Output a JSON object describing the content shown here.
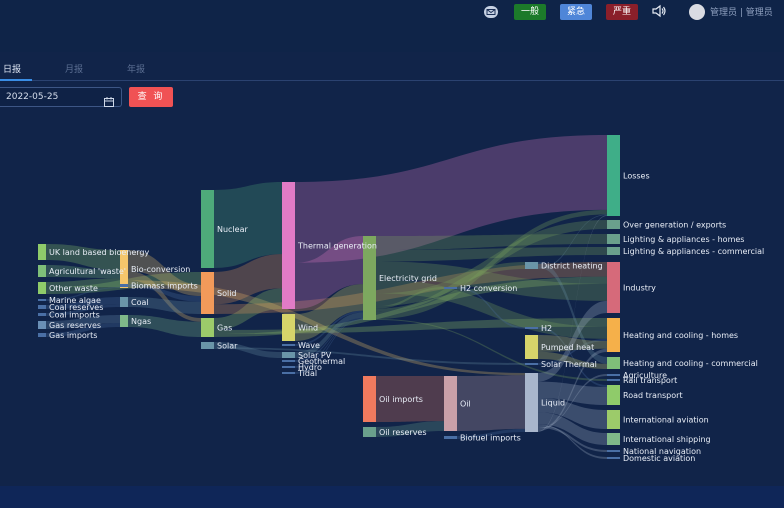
{
  "header": {
    "alerts": [
      {
        "label": "一般",
        "color": "#1c7a2a"
      },
      {
        "label": "紧急",
        "color": "#4f86d8"
      },
      {
        "label": "严重",
        "color": "#8a1f2a"
      }
    ],
    "user": "管理员 | 管理员"
  },
  "tabs": [
    {
      "label": "日报",
      "active": true
    },
    {
      "label": "月报",
      "active": false
    },
    {
      "label": "年报",
      "active": false
    }
  ],
  "filter": {
    "date": "2022-05-25",
    "query_label": "查 询"
  },
  "chart_data": {
    "type": "sankey",
    "nodes": [
      {
        "id": "uk",
        "label": "UK land based bioenergy",
        "color": "#8fcb6a"
      },
      {
        "id": "agri",
        "label": "Agricultural 'waste'",
        "color": "#7fbf79"
      },
      {
        "id": "ow",
        "label": "Other waste",
        "color": "#8fcb6a"
      },
      {
        "id": "ma",
        "label": "Marine algae",
        "color": "#4a6fa5"
      },
      {
        "id": "cr",
        "label": "Coal reserves",
        "color": "#4a6fa5"
      },
      {
        "id": "ci",
        "label": "Coal imports",
        "color": "#4a6fa5"
      },
      {
        "id": "gr",
        "label": "Gas reserves",
        "color": "#6a8fb5"
      },
      {
        "id": "gi",
        "label": "Gas imports",
        "color": "#4a6fa5"
      },
      {
        "id": "bio",
        "label": "Bio-conversion",
        "color": "#f5c66b"
      },
      {
        "id": "bimp",
        "label": "Biomass imports",
        "color": "#4a6fa5"
      },
      {
        "id": "coal",
        "label": "Coal",
        "color": "#6a95a8"
      },
      {
        "id": "ngas",
        "label": "Ngas",
        "color": "#7fb989"
      },
      {
        "id": "nuc",
        "label": "Nuclear",
        "color": "#4eaa7a"
      },
      {
        "id": "solid",
        "label": "Solid",
        "color": "#f29a5a"
      },
      {
        "id": "gas",
        "label": "Gas",
        "color": "#9ccb6a"
      },
      {
        "id": "solar",
        "label": "Solar",
        "color": "#6a95a8"
      },
      {
        "id": "thermal",
        "label": "Thermal generation",
        "color": "#e17bc6"
      },
      {
        "id": "wind",
        "label": "Wind",
        "color": "#d6d46a"
      },
      {
        "id": "wave",
        "label": "Wave",
        "color": "#4a6fa5"
      },
      {
        "id": "spv",
        "label": "Solar PV",
        "color": "#6a95a8"
      },
      {
        "id": "geo",
        "label": "Geothermal",
        "color": "#4a6fa5"
      },
      {
        "id": "hydro",
        "label": "Hydro",
        "color": "#4a6fa5"
      },
      {
        "id": "tidal",
        "label": "Tidal",
        "color": "#4a6fa5"
      },
      {
        "id": "elec",
        "label": "Electricity grid",
        "color": "#7da85f"
      },
      {
        "id": "oilimp",
        "label": "Oil imports",
        "color": "#f07a5e"
      },
      {
        "id": "oilres",
        "label": "Oil reserves",
        "color": "#6aa08c"
      },
      {
        "id": "oil",
        "label": "Oil",
        "color": "#caa0a8"
      },
      {
        "id": "bfimp",
        "label": "Biofuel imports",
        "color": "#4a6fa5"
      },
      {
        "id": "h2conv",
        "label": "H2 conversion",
        "color": "#4a6fa5"
      },
      {
        "id": "dh",
        "label": "District heating",
        "color": "#6a95a8"
      },
      {
        "id": "h2",
        "label": "H2",
        "color": "#4a6fa5"
      },
      {
        "id": "ph",
        "label": "Pumped heat",
        "color": "#d6d46a"
      },
      {
        "id": "sth",
        "label": "Solar Thermal",
        "color": "#4a6fa5"
      },
      {
        "id": "liquid",
        "label": "Liquid",
        "color": "#a9b6cc"
      },
      {
        "id": "losses",
        "label": "Losses",
        "color": "#3fae88"
      },
      {
        "id": "oge",
        "label": "Over generation / exports",
        "color": "#6aa08c"
      },
      {
        "id": "lah",
        "label": "Lighting & appliances - homes",
        "color": "#6aa08c"
      },
      {
        "id": "lac",
        "label": "Lighting & appliances - commercial",
        "color": "#6aa08c"
      },
      {
        "id": "ind",
        "label": "Industry",
        "color": "#d66a7a"
      },
      {
        "id": "hch",
        "label": "Heating and cooling - homes",
        "color": "#f5b04a"
      },
      {
        "id": "hcc",
        "label": "Heating and cooling - commercial",
        "color": "#7fbf79"
      },
      {
        "id": "agr",
        "label": "Agriculture",
        "color": "#4a6fa5"
      },
      {
        "id": "rail",
        "label": "Rail transport",
        "color": "#4a6fa5"
      },
      {
        "id": "road",
        "label": "Road transport",
        "color": "#8fcb6a"
      },
      {
        "id": "iav",
        "label": "International aviation",
        "color": "#9ccb6a"
      },
      {
        "id": "ish",
        "label": "International shipping",
        "color": "#7fb989"
      },
      {
        "id": "nnav",
        "label": "National navigation",
        "color": "#4a6fa5"
      },
      {
        "id": "dav",
        "label": "Domestic aviation",
        "color": "#4a6fa5"
      }
    ],
    "links": [
      [
        "uk",
        "bio",
        124
      ],
      [
        "agri",
        "bio",
        50
      ],
      [
        "ow",
        "bio",
        56
      ],
      [
        "ow",
        "solid",
        77
      ],
      [
        "ma",
        "bio",
        4
      ],
      [
        "cr",
        "coal",
        35
      ],
      [
        "ci",
        "coal",
        11
      ],
      [
        "gr",
        "ngas",
        82
      ],
      [
        "gi",
        "ngas",
        40
      ],
      [
        "bio",
        "solid",
        70
      ],
      [
        "bio",
        "gas",
        30
      ],
      [
        "bio",
        "liquid",
        26
      ],
      [
        "bimp",
        "solid",
        35
      ],
      [
        "coal",
        "solid",
        75
      ],
      [
        "ngas",
        "gas",
        122
      ],
      [
        "nuc",
        "thermal",
        840
      ],
      [
        "solid",
        "thermal",
        400
      ],
      [
        "gas",
        "thermal",
        240
      ],
      [
        "solid",
        "ind",
        120
      ],
      [
        "gas",
        "hch",
        80
      ],
      [
        "gas",
        "ind",
        60
      ],
      [
        "solar",
        "spv",
        60
      ],
      [
        "solar",
        "sth",
        20
      ],
      [
        "thermal",
        "losses",
        920
      ],
      [
        "thermal",
        "elec",
        525
      ],
      [
        "wind",
        "elec",
        290
      ],
      [
        "wave",
        "elec",
        20
      ],
      [
        "spv",
        "elec",
        60
      ],
      [
        "geo",
        "elec",
        7
      ],
      [
        "hydro",
        "elec",
        6
      ],
      [
        "tidal",
        "elec",
        9
      ],
      [
        "elec",
        "lah",
        110
      ],
      [
        "elec",
        "lac",
        90
      ],
      [
        "elec",
        "ind",
        140
      ],
      [
        "elec",
        "hch",
        110
      ],
      [
        "elec",
        "oge",
        100
      ],
      [
        "elec",
        "h2conv",
        20
      ],
      [
        "elec",
        "dh",
        25
      ],
      [
        "elec",
        "losses",
        56
      ],
      [
        "elec",
        "rail",
        8
      ],
      [
        "h2conv",
        "h2",
        20
      ],
      [
        "h2",
        "road",
        20
      ],
      [
        "dh",
        "hcc",
        40
      ],
      [
        "dh",
        "losses",
        10
      ],
      [
        "sth",
        "hch",
        20
      ],
      [
        "ph",
        "hch",
        70
      ],
      [
        "ph",
        "hcc",
        30
      ],
      [
        "oilimp",
        "oil",
        500
      ],
      [
        "oilres",
        "oil",
        110
      ],
      [
        "oil",
        "liquid",
        610
      ],
      [
        "bfimp",
        "liquid",
        35
      ],
      [
        "liquid",
        "ind",
        100
      ],
      [
        "liquid",
        "road",
        190
      ],
      [
        "liquid",
        "iav",
        165
      ],
      [
        "liquid",
        "ish",
        140
      ],
      [
        "liquid",
        "dav",
        12
      ],
      [
        "liquid",
        "nnav",
        30
      ],
      [
        "liquid",
        "agr",
        8
      ],
      [
        "liquid",
        "hch",
        30
      ],
      [
        "liquid",
        "losses",
        10
      ]
    ]
  }
}
